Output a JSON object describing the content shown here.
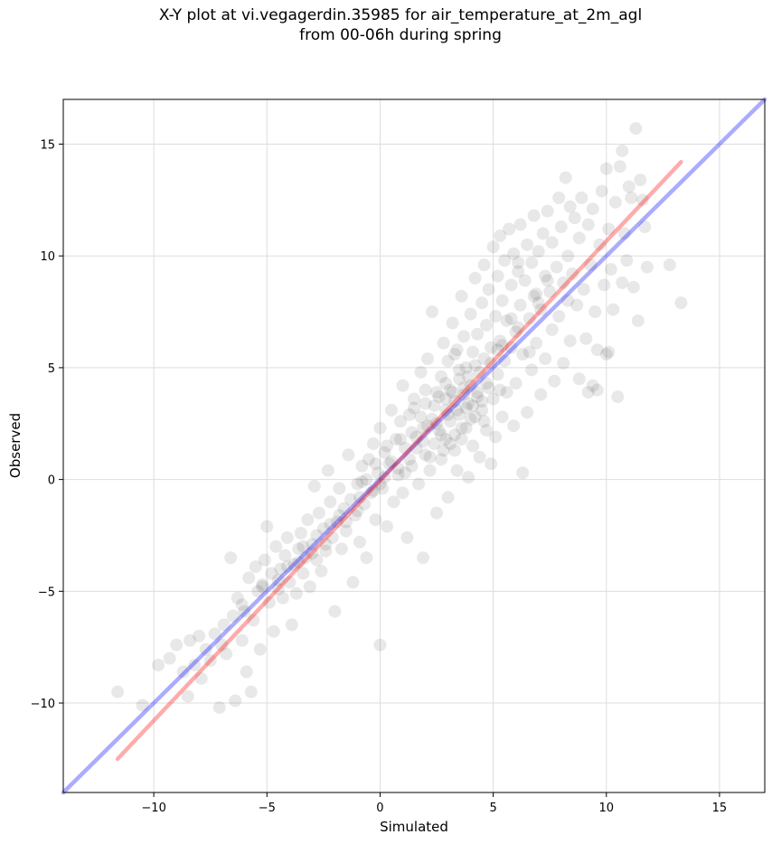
{
  "title_line1": "X-Y plot at vi.vegagerdin.35985 for air_temperature_at_2m_agl",
  "title_line2": "from 00-06h during spring",
  "chart_data": {
    "type": "scatter",
    "xlabel": "Simulated",
    "ylabel": "Observed",
    "xlim": [
      -14,
      17
    ],
    "ylim": [
      -14,
      17
    ],
    "xticks": [
      -10,
      -5,
      0,
      5,
      10,
      15
    ],
    "yticks": [
      -10,
      -5,
      0,
      5,
      10,
      15
    ],
    "xtick_labels": [
      "−10",
      "−5",
      "0",
      "5",
      "10",
      "15"
    ],
    "ytick_labels": [
      "−10",
      "−5",
      "0",
      "5",
      "10",
      "15"
    ],
    "grid": true,
    "lines": [
      {
        "role": "identity",
        "color": "#0000ff",
        "x": [
          -14,
          17
        ],
        "y": [
          -14,
          17
        ]
      },
      {
        "role": "fit",
        "color": "#ff0000",
        "x": [
          -11.6,
          13.3
        ],
        "y": [
          -12.5,
          14.2
        ]
      }
    ],
    "point_color": "#000000",
    "point_opacity": 0.09,
    "points": [
      [
        -11.6,
        -9.5
      ],
      [
        -10.5,
        -10.1
      ],
      [
        -9.8,
        -8.3
      ],
      [
        -9.3,
        -8.0
      ],
      [
        -9.0,
        -7.4
      ],
      [
        -8.7,
        -8.6
      ],
      [
        -8.5,
        -9.7
      ],
      [
        -8.4,
        -7.2
      ],
      [
        -8.2,
        -8.3
      ],
      [
        -8.0,
        -7.0
      ],
      [
        -7.9,
        -8.9
      ],
      [
        -7.7,
        -7.6
      ],
      [
        -7.5,
        -8.1
      ],
      [
        -7.3,
        -6.9
      ],
      [
        -7.1,
        -10.2
      ],
      [
        -7.0,
        -7.4
      ],
      [
        -6.9,
        -6.5
      ],
      [
        -6.8,
        -7.8
      ],
      [
        -6.6,
        -3.5
      ],
      [
        -6.5,
        -6.1
      ],
      [
        -6.4,
        -9.9
      ],
      [
        -6.3,
        -5.3
      ],
      [
        -6.1,
        -7.2
      ],
      [
        -6.0,
        -5.9
      ],
      [
        -5.9,
        -8.6
      ],
      [
        -5.8,
        -4.4
      ],
      [
        -5.7,
        -9.5
      ],
      [
        -5.6,
        -6.3
      ],
      [
        -5.5,
        -3.9
      ],
      [
        -5.4,
        -5.0
      ],
      [
        -5.3,
        -7.6
      ],
      [
        -5.2,
        -4.7
      ],
      [
        -5.1,
        -3.6
      ],
      [
        -5.0,
        -2.1
      ],
      [
        -4.9,
        -5.5
      ],
      [
        -4.8,
        -4.2
      ],
      [
        -4.7,
        -6.8
      ],
      [
        -4.6,
        -3.0
      ],
      [
        -4.5,
        -4.9
      ],
      [
        -4.4,
        -4.0
      ],
      [
        -4.3,
        -5.3
      ],
      [
        -4.2,
        -3.4
      ],
      [
        -4.1,
        -2.6
      ],
      [
        -4.0,
        -4.6
      ],
      [
        -3.9,
        -6.5
      ],
      [
        -3.8,
        -3.8
      ],
      [
        -3.7,
        -5.1
      ],
      [
        -3.6,
        -3.1
      ],
      [
        -3.5,
        -2.4
      ],
      [
        -3.4,
        -4.2
      ],
      [
        -3.3,
        -3.5
      ],
      [
        -3.2,
        -1.8
      ],
      [
        -3.1,
        -4.8
      ],
      [
        -3.0,
        -2.9
      ],
      [
        -2.9,
        -0.3
      ],
      [
        -2.8,
        -3.6
      ],
      [
        -2.7,
        -1.5
      ],
      [
        -2.6,
        -4.1
      ],
      [
        -2.5,
        -2.2
      ],
      [
        -2.4,
        -3.2
      ],
      [
        -2.3,
        0.4
      ],
      [
        -2.2,
        -1.0
      ],
      [
        -2.1,
        -2.6
      ],
      [
        -2.0,
        -5.9
      ],
      [
        -1.9,
        -1.9
      ],
      [
        -1.8,
        -0.4
      ],
      [
        -1.7,
        -3.1
      ],
      [
        -1.6,
        -1.3
      ],
      [
        -1.5,
        -2.3
      ],
      [
        -1.4,
        1.1
      ],
      [
        -1.3,
        -0.9
      ],
      [
        -1.2,
        -4.6
      ],
      [
        -1.1,
        -1.6
      ],
      [
        -1.0,
        -0.2
      ],
      [
        -0.9,
        -2.8
      ],
      [
        -0.8,
        0.6
      ],
      [
        -0.7,
        -1.1
      ],
      [
        -0.6,
        -3.5
      ],
      [
        -0.5,
        0.9
      ],
      [
        -0.4,
        -0.6
      ],
      [
        -0.3,
        1.6
      ],
      [
        -0.2,
        -1.8
      ],
      [
        -0.1,
        0.3
      ],
      [
        0.0,
        -7.4
      ],
      [
        0.0,
        2.3
      ],
      [
        0.1,
        -0.4
      ],
      [
        0.2,
        1.2
      ],
      [
        0.3,
        -2.1
      ],
      [
        0.4,
        0.7
      ],
      [
        0.5,
        3.1
      ],
      [
        0.6,
        -1.0
      ],
      [
        0.7,
        1.8
      ],
      [
        0.8,
        0.2
      ],
      [
        0.9,
        2.6
      ],
      [
        1.0,
        -0.6
      ],
      [
        1.0,
        4.2
      ],
      [
        1.1,
        1.4
      ],
      [
        1.2,
        -2.6
      ],
      [
        1.3,
        2.9
      ],
      [
        1.4,
        0.6
      ],
      [
        1.5,
        3.6
      ],
      [
        1.6,
        1.9
      ],
      [
        1.7,
        -0.2
      ],
      [
        1.8,
        4.8
      ],
      [
        1.9,
        2.3
      ],
      [
        1.9,
        -3.5
      ],
      [
        2.0,
        1.1
      ],
      [
        2.0,
        3.4
      ],
      [
        2.1,
        5.4
      ],
      [
        2.2,
        0.4
      ],
      [
        2.3,
        2.7
      ],
      [
        2.3,
        7.5
      ],
      [
        2.4,
        1.6
      ],
      [
        2.5,
        3.9
      ],
      [
        2.5,
        -1.5
      ],
      [
        2.6,
        2.2
      ],
      [
        2.7,
        4.6
      ],
      [
        2.7,
        0.9
      ],
      [
        2.8,
        6.1
      ],
      [
        2.9,
        3.1
      ],
      [
        2.9,
        1.8
      ],
      [
        3.0,
        5.3
      ],
      [
        3.0,
        -0.8
      ],
      [
        3.1,
        2.6
      ],
      [
        3.1,
        4.0
      ],
      [
        3.2,
        7.0
      ],
      [
        3.3,
        1.3
      ],
      [
        3.3,
        3.5
      ],
      [
        3.4,
        5.8
      ],
      [
        3.4,
        0.4
      ],
      [
        3.5,
        2.9
      ],
      [
        3.5,
        4.5
      ],
      [
        3.6,
        8.2
      ],
      [
        3.6,
        1.8
      ],
      [
        3.7,
        3.8
      ],
      [
        3.7,
        6.4
      ],
      [
        3.8,
        2.3
      ],
      [
        3.8,
        5.0
      ],
      [
        3.9,
        0.1
      ],
      [
        3.9,
        3.4
      ],
      [
        4.0,
        7.4
      ],
      [
        4.0,
        4.2
      ],
      [
        4.1,
        1.5
      ],
      [
        4.1,
        5.7
      ],
      [
        4.2,
        2.8
      ],
      [
        4.2,
        9.0
      ],
      [
        4.3,
        3.9
      ],
      [
        4.3,
        6.5
      ],
      [
        4.4,
        1.0
      ],
      [
        4.4,
        4.8
      ],
      [
        4.5,
        7.9
      ],
      [
        4.5,
        3.1
      ],
      [
        4.6,
        5.4
      ],
      [
        4.6,
        9.6
      ],
      [
        4.7,
        2.2
      ],
      [
        4.7,
        6.9
      ],
      [
        4.8,
        4.1
      ],
      [
        4.8,
        8.5
      ],
      [
        4.9,
        0.7
      ],
      [
        4.9,
        5.9
      ],
      [
        5.0,
        10.4
      ],
      [
        5.0,
        3.6
      ],
      [
        5.1,
        7.3
      ],
      [
        5.1,
        1.9
      ],
      [
        5.2,
        9.1
      ],
      [
        5.2,
        4.7
      ],
      [
        5.3,
        6.2
      ],
      [
        5.3,
        10.9
      ],
      [
        5.4,
        2.8
      ],
      [
        5.4,
        8.0
      ],
      [
        5.5,
        5.3
      ],
      [
        5.5,
        9.8
      ],
      [
        5.6,
        3.9
      ],
      [
        5.6,
        7.1
      ],
      [
        5.7,
        11.2
      ],
      [
        5.8,
        5.9
      ],
      [
        5.8,
        8.7
      ],
      [
        5.9,
        2.4
      ],
      [
        5.9,
        10.1
      ],
      [
        6.0,
        6.6
      ],
      [
        6.0,
        4.3
      ],
      [
        6.1,
        9.3
      ],
      [
        6.2,
        7.8
      ],
      [
        6.2,
        11.4
      ],
      [
        6.3,
        0.3
      ],
      [
        6.3,
        5.6
      ],
      [
        6.4,
        8.9
      ],
      [
        6.5,
        10.5
      ],
      [
        6.5,
        3.0
      ],
      [
        6.6,
        7.2
      ],
      [
        6.7,
        9.7
      ],
      [
        6.7,
        4.9
      ],
      [
        6.8,
        11.8
      ],
      [
        6.9,
        8.3
      ],
      [
        6.9,
        6.1
      ],
      [
        7.0,
        10.2
      ],
      [
        7.1,
        3.8
      ],
      [
        7.1,
        7.6
      ],
      [
        7.2,
        11.0
      ],
      [
        7.3,
        9.1
      ],
      [
        7.3,
        5.4
      ],
      [
        7.4,
        12.0
      ],
      [
        7.5,
        8.4
      ],
      [
        7.6,
        6.7
      ],
      [
        7.6,
        10.6
      ],
      [
        7.7,
        4.4
      ],
      [
        7.8,
        9.5
      ],
      [
        7.9,
        12.6
      ],
      [
        7.9,
        7.3
      ],
      [
        8.0,
        11.3
      ],
      [
        8.1,
        8.8
      ],
      [
        8.1,
        5.2
      ],
      [
        8.2,
        13.5
      ],
      [
        8.3,
        10.0
      ],
      [
        8.4,
        6.2
      ],
      [
        8.4,
        12.2
      ],
      [
        8.5,
        9.2
      ],
      [
        8.6,
        11.7
      ],
      [
        8.7,
        7.8
      ],
      [
        8.8,
        4.5
      ],
      [
        8.8,
        10.8
      ],
      [
        8.9,
        12.6
      ],
      [
        9.0,
        8.5
      ],
      [
        9.1,
        6.3
      ],
      [
        9.2,
        11.4
      ],
      [
        9.2,
        3.9
      ],
      [
        9.3,
        9.6
      ],
      [
        9.4,
        12.1
      ],
      [
        9.5,
        7.5
      ],
      [
        9.6,
        5.8
      ],
      [
        9.7,
        10.5
      ],
      [
        9.8,
        12.9
      ],
      [
        9.9,
        8.7
      ],
      [
        10.0,
        13.9
      ],
      [
        10.0,
        5.6
      ],
      [
        10.1,
        11.2
      ],
      [
        10.2,
        9.4
      ],
      [
        10.3,
        7.6
      ],
      [
        10.4,
        12.4
      ],
      [
        10.5,
        3.7
      ],
      [
        10.6,
        14.0
      ],
      [
        10.7,
        8.8
      ],
      [
        10.8,
        11.0
      ],
      [
        10.9,
        9.8
      ],
      [
        11.0,
        13.1
      ],
      [
        11.1,
        12.6
      ],
      [
        11.2,
        8.6
      ],
      [
        11.3,
        15.7
      ],
      [
        11.4,
        7.1
      ],
      [
        11.5,
        13.4
      ],
      [
        11.6,
        12.5
      ],
      [
        11.8,
        9.5
      ],
      [
        11.7,
        11.3
      ],
      [
        10.7,
        14.7
      ],
      [
        9.4,
        4.2
      ],
      [
        12.8,
        9.6
      ],
      [
        13.3,
        7.9
      ],
      [
        9.6,
        4.0
      ],
      [
        10.1,
        5.7
      ],
      [
        6.1,
        9.7
      ],
      [
        2.9,
        4.3
      ],
      [
        3.3,
        2.0
      ],
      [
        2.6,
        3.7
      ],
      [
        3.9,
        4.6
      ],
      [
        1.6,
        1.4
      ],
      [
        3.4,
        3.1
      ],
      [
        2.1,
        2.4
      ],
      [
        4.5,
        3.5
      ],
      [
        3.0,
        2.9
      ],
      [
        3.6,
        2.3
      ],
      [
        1.3,
        0.9
      ],
      [
        2.4,
        3.3
      ],
      [
        4.2,
        5.1
      ],
      [
        3.1,
        1.6
      ],
      [
        2.7,
        2.0
      ],
      [
        3.8,
        3.2
      ],
      [
        1.8,
        2.8
      ],
      [
        4.7,
        4.3
      ],
      [
        2.2,
        1.0
      ],
      [
        3.5,
        4.9
      ],
      [
        0.8,
        0.5
      ],
      [
        2.9,
        3.6
      ],
      [
        4.0,
        2.7
      ],
      [
        1.9,
        1.7
      ],
      [
        3.2,
        3.9
      ],
      [
        2.5,
        2.5
      ],
      [
        4.3,
        3.7
      ],
      [
        3.7,
        4.1
      ],
      [
        1.4,
        2.1
      ],
      [
        2.8,
        1.3
      ],
      [
        0.5,
        0.8
      ],
      [
        -0.3,
        -0.5
      ],
      [
        -1.0,
        -1.4
      ],
      [
        0.2,
        0.1
      ],
      [
        -0.6,
        0.0
      ],
      [
        1.1,
        0.3
      ],
      [
        0.0,
        -0.2
      ],
      [
        -1.5,
        -1.9
      ],
      [
        -2.2,
        -2.0
      ],
      [
        -0.9,
        -0.8
      ],
      [
        -3.4,
        -3.0
      ],
      [
        -2.8,
        -2.5
      ],
      [
        -4.1,
        -3.9
      ],
      [
        -3.0,
        -3.3
      ],
      [
        -5.2,
        -4.8
      ],
      [
        -4.5,
        -4.5
      ],
      [
        -6.1,
        -5.6
      ],
      [
        -2.4,
        -2.9
      ],
      [
        -1.8,
        -1.6
      ],
      [
        -3.6,
        -3.7
      ],
      [
        5.4,
        6.0
      ],
      [
        6.1,
        6.8
      ],
      [
        5.8,
        7.2
      ],
      [
        7.0,
        7.9
      ],
      [
        6.6,
        5.7
      ],
      [
        4.9,
        5.2
      ],
      [
        5.2,
        5.8
      ],
      [
        6.8,
        8.2
      ],
      [
        7.4,
        8.9
      ],
      [
        8.3,
        8.0
      ],
      [
        4.1,
        3.3
      ],
      [
        4.6,
        2.6
      ],
      [
        5.3,
        4.0
      ],
      [
        3.3,
        5.6
      ],
      [
        2.0,
        4.0
      ],
      [
        1.5,
        3.2
      ],
      [
        0.9,
        1.8
      ],
      [
        0.3,
        1.5
      ],
      [
        -0.2,
        0.7
      ],
      [
        -0.8,
        -0.1
      ]
    ]
  }
}
